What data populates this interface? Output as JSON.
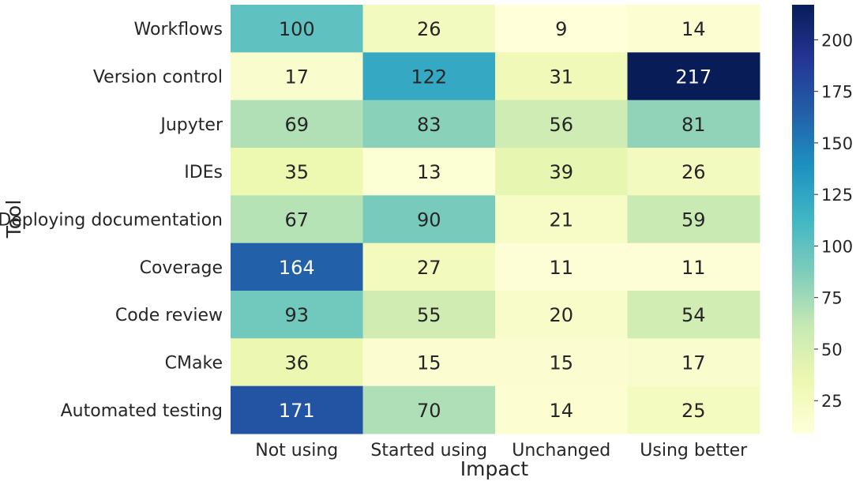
{
  "chart_data": {
    "type": "heatmap",
    "xlabel": "Impact",
    "ylabel": "Tool",
    "x_categories": [
      "Not using",
      "Started using",
      "Unchanged",
      "Using better"
    ],
    "y_categories": [
      "Workflows",
      "Version control",
      "Jupyter",
      "IDEs",
      "Deploying documentation",
      "Coverage",
      "Code review",
      "CMake",
      "Automated testing"
    ],
    "values": [
      [
        100,
        26,
        9,
        14
      ],
      [
        17,
        122,
        31,
        217
      ],
      [
        69,
        83,
        56,
        81
      ],
      [
        35,
        13,
        39,
        26
      ],
      [
        67,
        90,
        21,
        59
      ],
      [
        164,
        27,
        11,
        11
      ],
      [
        93,
        55,
        20,
        54
      ],
      [
        36,
        15,
        15,
        17
      ],
      [
        171,
        70,
        14,
        25
      ]
    ],
    "colormap": "YlGnBu",
    "color_range": [
      9,
      217
    ],
    "colorbar_ticks": [
      25,
      50,
      75,
      100,
      125,
      150,
      175,
      200
    ],
    "annotations": true,
    "grid": false
  }
}
